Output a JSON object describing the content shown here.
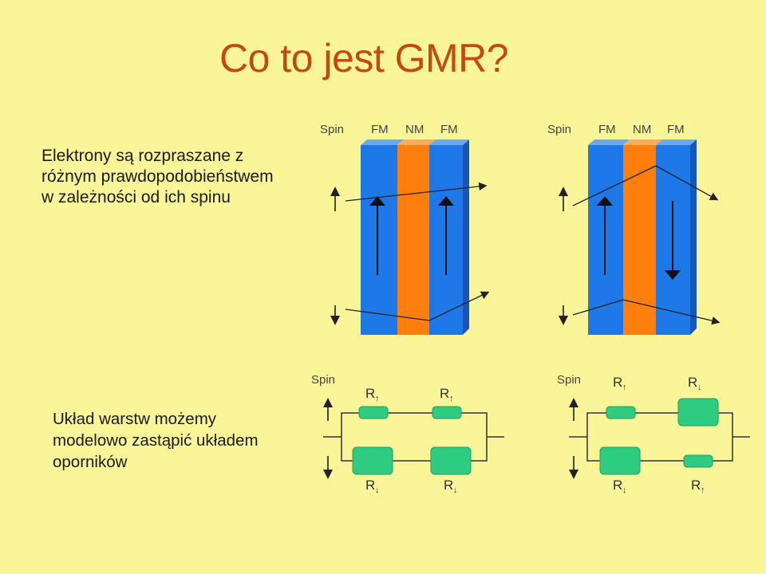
{
  "title": "Co to jest GMR?",
  "intro_lines": [
    "Elektrony są rozpraszane z",
    "różnym prawdopodobieństwem",
    "w zależności od ich spinu"
  ],
  "resistor_lines": [
    "Układ warstw możemy",
    "modelowo zastąpić układem",
    "oporników"
  ],
  "layer_labels": {
    "spin": "Spin",
    "fm": "FM",
    "nm": "NM"
  },
  "resistor_labels": {
    "r": "R",
    "up": "↑",
    "down": "↓"
  },
  "colors": {
    "background": "#fbf59a",
    "title": "#c24a0e",
    "fm_layer": "#1f78e8",
    "nm_layer": "#ff7f0e",
    "resistor": "#2ecc80"
  }
}
